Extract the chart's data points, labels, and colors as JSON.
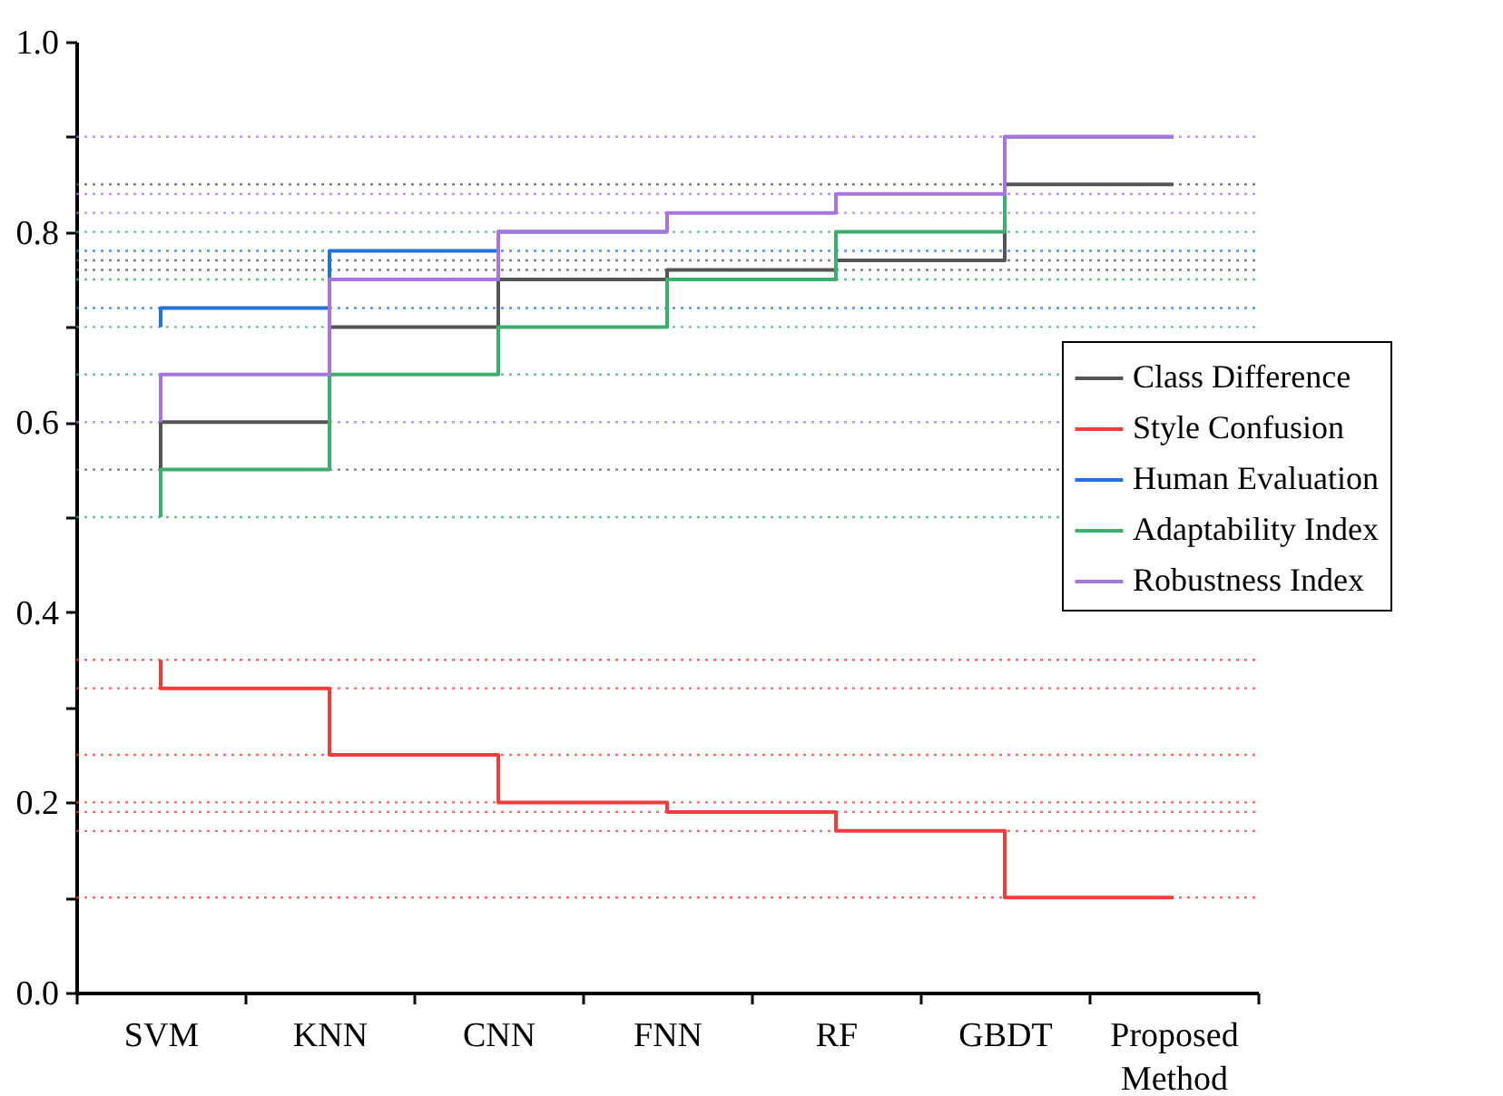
{
  "chart_data": {
    "type": "step",
    "categories": [
      "SVM",
      "KNN",
      "CNN",
      "FNN",
      "RF",
      "GBDT",
      "Proposed Method"
    ],
    "series": [
      {
        "name": "Class Difference",
        "color": "#555555",
        "values": [
          0.55,
          0.6,
          0.7,
          0.75,
          0.76,
          0.77,
          0.85
        ]
      },
      {
        "name": "Style Confusion",
        "color": "#f03c3c",
        "values": [
          0.35,
          0.32,
          0.25,
          0.2,
          0.19,
          0.17,
          0.1
        ]
      },
      {
        "name": "Human Evaluation",
        "color": "#2273d8",
        "values": [
          0.7,
          0.72,
          0.78,
          0.8,
          null,
          null,
          null
        ]
      },
      {
        "name": "Adaptability Index",
        "color": "#3cae6e",
        "values": [
          0.5,
          0.55,
          0.65,
          0.7,
          0.75,
          0.8,
          0.9
        ]
      },
      {
        "name": "Robustness Index",
        "color": "#a874e0",
        "values": [
          0.6,
          0.65,
          0.75,
          0.8,
          0.82,
          0.84,
          0.9
        ]
      }
    ],
    "ylim": [
      0,
      1
    ],
    "yticks": [
      {
        "value": 0,
        "label": "0.0"
      },
      {
        "value": 0.1,
        "label": null
      },
      {
        "value": 0.2,
        "label": "0.2"
      },
      {
        "value": 0.3,
        "label": null
      },
      {
        "value": 0.4,
        "label": "0.4"
      },
      {
        "value": 0.5,
        "label": null
      },
      {
        "value": 0.6,
        "label": "0.6"
      },
      {
        "value": 0.7,
        "label": null
      },
      {
        "value": 0.8,
        "label": "0.8"
      },
      {
        "value": 0.9,
        "label": null
      },
      {
        "value": 1,
        "label": "1.0"
      }
    ],
    "ref_lines": [
      {
        "axis": "y",
        "value": 0.1,
        "color": "#f03c3c",
        "line_style": "dotted"
      },
      {
        "axis": "y",
        "value": 0.17,
        "color": "#f03c3c",
        "line_style": "dotted"
      },
      {
        "axis": "y",
        "value": 0.19,
        "color": "#f03c3c",
        "line_style": "dotted"
      },
      {
        "axis": "y",
        "value": 0.2,
        "color": "#f03c3c",
        "line_style": "dotted"
      },
      {
        "axis": "y",
        "value": 0.25,
        "color": "#f03c3c",
        "line_style": "dotted"
      },
      {
        "axis": "y",
        "value": 0.32,
        "color": "#f03c3c",
        "line_style": "dotted"
      },
      {
        "axis": "y",
        "value": 0.35,
        "color": "#f03c3c",
        "line_style": "dotted"
      },
      {
        "axis": "y",
        "value": 0.5,
        "color": "#3cae6e",
        "line_style": "dotted"
      },
      {
        "axis": "y",
        "value": 0.55,
        "color": "#555555",
        "line_style": "dotted"
      },
      {
        "axis": "y",
        "value": 0.6,
        "color": "#a874e0",
        "line_style": "dotted"
      },
      {
        "axis": "y",
        "value": 0.65,
        "color": "#3cae6e",
        "line_style": "dotted"
      },
      {
        "axis": "y",
        "value": 0.7,
        "color": "#3cae6e",
        "line_style": "dotted"
      },
      {
        "axis": "y",
        "value": 0.72,
        "color": "#2273d8",
        "line_style": "dotted"
      },
      {
        "axis": "y",
        "value": 0.75,
        "color": "#3cae6e",
        "line_style": "dotted"
      },
      {
        "axis": "y",
        "value": 0.76,
        "color": "#555555",
        "line_style": "dotted"
      },
      {
        "axis": "y",
        "value": 0.77,
        "color": "#555555",
        "line_style": "dotted"
      },
      {
        "axis": "y",
        "value": 0.78,
        "color": "#2273d8",
        "line_style": "dotted"
      },
      {
        "axis": "y",
        "value": 0.8,
        "color": "#3cae6e",
        "line_style": "dotted"
      },
      {
        "axis": "y",
        "value": 0.82,
        "color": "#a874e0",
        "line_style": "dotted"
      },
      {
        "axis": "y",
        "value": 0.84,
        "color": "#a874e0",
        "line_style": "dotted"
      },
      {
        "axis": "y",
        "value": 0.85,
        "color": "#555555",
        "line_style": "dotted"
      },
      {
        "axis": "y",
        "value": 0.9,
        "color": "#a874e0",
        "line_style": "dotted"
      }
    ],
    "legend": "right",
    "grid": false,
    "line_style": "solid",
    "marker": "none"
  }
}
